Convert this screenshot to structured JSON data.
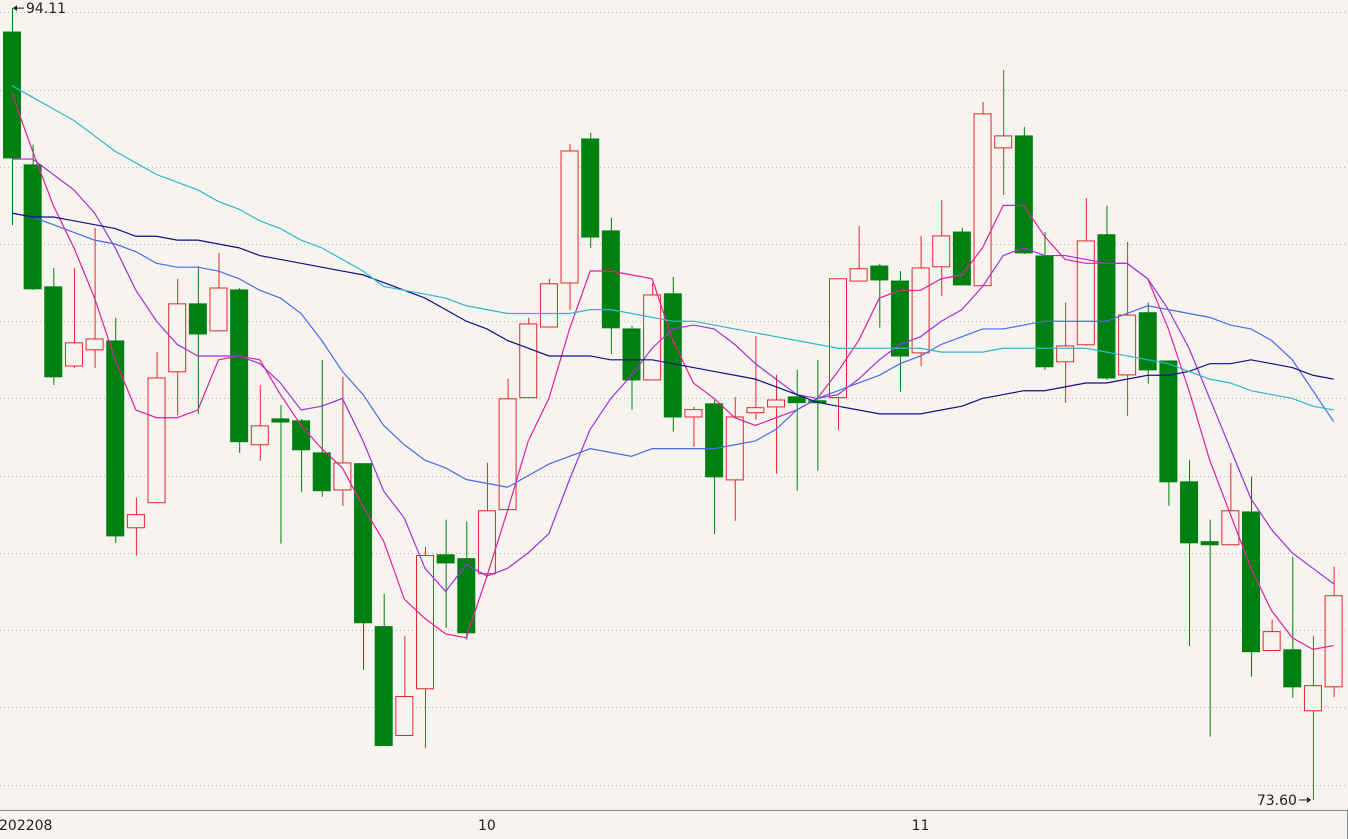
{
  "chart_data": {
    "type": "candlestick",
    "categories": [
      "202208",
      null,
      null,
      null,
      null,
      null,
      null,
      null,
      null,
      null,
      null,
      null,
      null,
      null,
      null,
      null,
      null,
      null,
      null,
      null,
      null,
      null,
      null,
      "10",
      null,
      null,
      null,
      null,
      null,
      null,
      null,
      null,
      null,
      null,
      null,
      null,
      null,
      null,
      null,
      null,
      null,
      null,
      null,
      null,
      "11",
      null,
      null,
      null,
      null,
      null,
      null,
      null,
      null,
      null,
      null,
      null,
      null,
      null,
      null,
      null,
      null,
      null,
      null,
      null,
      null
    ],
    "open": [
      93.49,
      90.05,
      86.89,
      84.84,
      85.26,
      85.49,
      80.65,
      81.3,
      84.69,
      86.45,
      85.75,
      86.81,
      82.8,
      83.47,
      83.42,
      82.59,
      81.63,
      82.31,
      78.09,
      75.27,
      76.48,
      79.95,
      79.85,
      79.46,
      81.12,
      84.02,
      85.85,
      86.99,
      90.72,
      88.34,
      85.8,
      84.48,
      86.71,
      83.52,
      83.86,
      81.89,
      83.63,
      83.78,
      84.04,
      83.94,
      84.02,
      87.04,
      87.43,
      87.04,
      85.18,
      87.41,
      88.31,
      86.92,
      90.49,
      90.8,
      87.69,
      84.95,
      85.39,
      88.24,
      84.61,
      86.22,
      84.97,
      81.84,
      80.29,
      80.21,
      81.06,
      77.47,
      77.49,
      75.91,
      76.53
    ],
    "high": [
      94.11,
      90.57,
      87.38,
      87.38,
      88.42,
      86.09,
      81.43,
      85.21,
      87.1,
      87.43,
      87.77,
      86.86,
      84.35,
      83.83,
      83.47,
      85.0,
      84.56,
      82.31,
      78.94,
      77.85,
      80.16,
      80.86,
      80.81,
      82.33,
      84.51,
      86.09,
      87.1,
      90.59,
      90.88,
      88.68,
      85.88,
      86.99,
      87.15,
      83.78,
      83.96,
      84.04,
      85.62,
      84.61,
      84.74,
      85.0,
      87.1,
      88.47,
      87.49,
      87.3,
      88.21,
      89.14,
      88.42,
      91.68,
      92.51,
      91.03,
      88.31,
      86.48,
      89.19,
      88.99,
      88.05,
      86.48,
      84.97,
      82.41,
      80.86,
      82.33,
      81.97,
      78.27,
      79.9,
      77.85,
      79.64
    ],
    "low": [
      88.49,
      86.81,
      84.35,
      84.79,
      84.79,
      80.26,
      79.93,
      81.3,
      83.57,
      83.6,
      85.75,
      82.59,
      82.38,
      80.24,
      81.58,
      81.45,
      81.22,
      76.97,
      75.01,
      75.27,
      74.95,
      78.06,
      77.75,
      79.38,
      81.09,
      84.02,
      85.85,
      86.29,
      87.9,
      85.15,
      83.71,
      84.48,
      83.14,
      82.75,
      80.49,
      80.83,
      83.45,
      82.05,
      81.61,
      82.13,
      83.19,
      87.04,
      85.83,
      84.17,
      84.84,
      86.66,
      86.94,
      86.92,
      89.27,
      87.74,
      84.74,
      83.89,
      85.36,
      84.48,
      83.55,
      84.38,
      81.22,
      77.59,
      75.24,
      80.21,
      76.79,
      77.47,
      76.25,
      73.6,
      76.27
    ],
    "close": [
      90.23,
      86.84,
      84.56,
      85.44,
      85.54,
      80.44,
      80.99,
      84.53,
      86.45,
      85.67,
      86.86,
      82.88,
      83.29,
      83.39,
      82.67,
      81.61,
      82.33,
      78.19,
      75.01,
      76.28,
      79.93,
      79.74,
      77.93,
      81.09,
      83.99,
      85.93,
      86.97,
      90.41,
      88.18,
      85.83,
      84.48,
      86.68,
      83.52,
      83.71,
      81.97,
      83.52,
      83.76,
      83.96,
      83.89,
      83.89,
      87.1,
      87.36,
      87.07,
      85.1,
      87.38,
      88.21,
      86.94,
      91.37,
      90.8,
      87.77,
      84.82,
      85.36,
      88.08,
      84.53,
      86.16,
      84.74,
      81.84,
      80.26,
      80.21,
      81.09,
      77.44,
      77.96,
      76.53,
      76.56,
      78.89
    ],
    "up_color": "#e02828",
    "down_color": "#008010",
    "lines": [
      {
        "color": "#e0209a",
        "values": [
          91.9,
          90.4,
          89.0,
          87.9,
          86.6,
          85.0,
          83.7,
          83.5,
          83.5,
          83.7,
          85.0,
          85.1,
          85.0,
          84.1,
          83.3,
          82.7,
          82.2,
          81.2,
          80.3,
          78.8,
          78.3,
          77.9,
          77.8,
          79.4,
          81.1,
          82.9,
          84.0,
          85.8,
          87.3,
          87.3,
          87.2,
          87.1,
          85.5,
          84.4,
          84.0,
          83.5,
          83.3,
          83.5,
          83.7,
          84.0,
          84.7,
          85.5,
          86.6,
          86.8,
          86.8,
          87.1,
          87.2,
          87.9,
          89.0,
          89.0,
          88.2,
          87.6,
          87.5,
          87.5,
          87.5,
          87.1,
          85.8,
          84.2,
          82.4,
          81.0,
          79.6,
          78.5,
          77.8,
          77.5,
          77.6
        ]
      },
      {
        "color": "#a030d8",
        "values": [
          90.2,
          90.2,
          89.8,
          89.4,
          88.8,
          87.9,
          86.8,
          86.0,
          85.4,
          85.1,
          85.1,
          85.1,
          84.9,
          84.4,
          83.7,
          83.8,
          84.0,
          82.9,
          81.6,
          80.9,
          79.6,
          79.0,
          79.7,
          79.4,
          79.6,
          80.0,
          80.5,
          81.9,
          83.2,
          84.0,
          84.6,
          85.3,
          85.8,
          85.9,
          85.8,
          85.4,
          84.9,
          84.5,
          84.1,
          84.0,
          84.1,
          84.5,
          85.0,
          85.4,
          85.6,
          86.0,
          86.3,
          86.9,
          87.7,
          87.9,
          87.7,
          87.7,
          87.6,
          87.5,
          87.5,
          87.1,
          86.3,
          85.3,
          84.0,
          82.7,
          81.4,
          80.6,
          80.0,
          79.6,
          79.2
        ]
      },
      {
        "color": "#4a6ae8",
        "values": [
          88.8,
          88.7,
          88.5,
          88.3,
          88.1,
          88.0,
          87.8,
          87.5,
          87.4,
          87.4,
          87.3,
          87.1,
          86.8,
          86.6,
          86.2,
          85.5,
          84.7,
          84.1,
          83.3,
          82.8,
          82.4,
          82.2,
          81.9,
          81.8,
          81.7,
          82.0,
          82.3,
          82.5,
          82.7,
          82.6,
          82.5,
          82.7,
          82.7,
          82.7,
          82.7,
          82.8,
          82.9,
          83.2,
          83.7,
          84.0,
          84.2,
          84.4,
          84.6,
          84.9,
          85.1,
          85.4,
          85.6,
          85.8,
          85.8,
          85.9,
          86.0,
          86.0,
          86.0,
          86.0,
          86.2,
          86.4,
          86.3,
          86.2,
          86.1,
          85.9,
          85.8,
          85.5,
          85.0,
          84.2,
          83.4
        ]
      },
      {
        "color": "#101088",
        "values": [
          88.8,
          88.7,
          88.7,
          88.6,
          88.5,
          88.4,
          88.2,
          88.2,
          88.1,
          88.1,
          88.0,
          87.9,
          87.7,
          87.6,
          87.5,
          87.4,
          87.3,
          87.2,
          87.0,
          86.8,
          86.6,
          86.3,
          86.0,
          85.8,
          85.5,
          85.3,
          85.1,
          85.1,
          85.1,
          85.0,
          85.0,
          85.0,
          84.9,
          84.8,
          84.7,
          84.6,
          84.5,
          84.3,
          84.1,
          83.9,
          83.8,
          83.7,
          83.6,
          83.6,
          83.6,
          83.7,
          83.8,
          84.0,
          84.1,
          84.2,
          84.2,
          84.3,
          84.4,
          84.4,
          84.5,
          84.6,
          84.6,
          84.7,
          84.9,
          84.9,
          85.0,
          84.9,
          84.8,
          84.6,
          84.5
        ]
      },
      {
        "color": "#30b8c8",
        "values": [
          92.1,
          91.8,
          91.5,
          91.2,
          90.8,
          90.4,
          90.1,
          89.8,
          89.6,
          89.4,
          89.1,
          88.9,
          88.6,
          88.4,
          88.1,
          87.9,
          87.6,
          87.3,
          86.9,
          86.8,
          86.7,
          86.6,
          86.4,
          86.3,
          86.2,
          86.2,
          86.2,
          86.2,
          86.3,
          86.3,
          86.2,
          86.1,
          86.0,
          86.0,
          85.9,
          85.8,
          85.7,
          85.6,
          85.5,
          85.4,
          85.3,
          85.3,
          85.3,
          85.3,
          85.3,
          85.2,
          85.2,
          85.2,
          85.3,
          85.3,
          85.3,
          85.3,
          85.3,
          85.2,
          85.1,
          85.0,
          84.9,
          84.7,
          84.5,
          84.4,
          84.2,
          84.1,
          84.0,
          83.8,
          83.7
        ]
      }
    ],
    "ylim": [
      73.34,
      94.32
    ],
    "ygrid": [
      74,
      76,
      78,
      80,
      82,
      84,
      86,
      88,
      90,
      92,
      94
    ],
    "high_marker": {
      "value": 94.11,
      "label": "94.11"
    },
    "low_marker": {
      "value": 73.6,
      "label": "73.60"
    }
  }
}
